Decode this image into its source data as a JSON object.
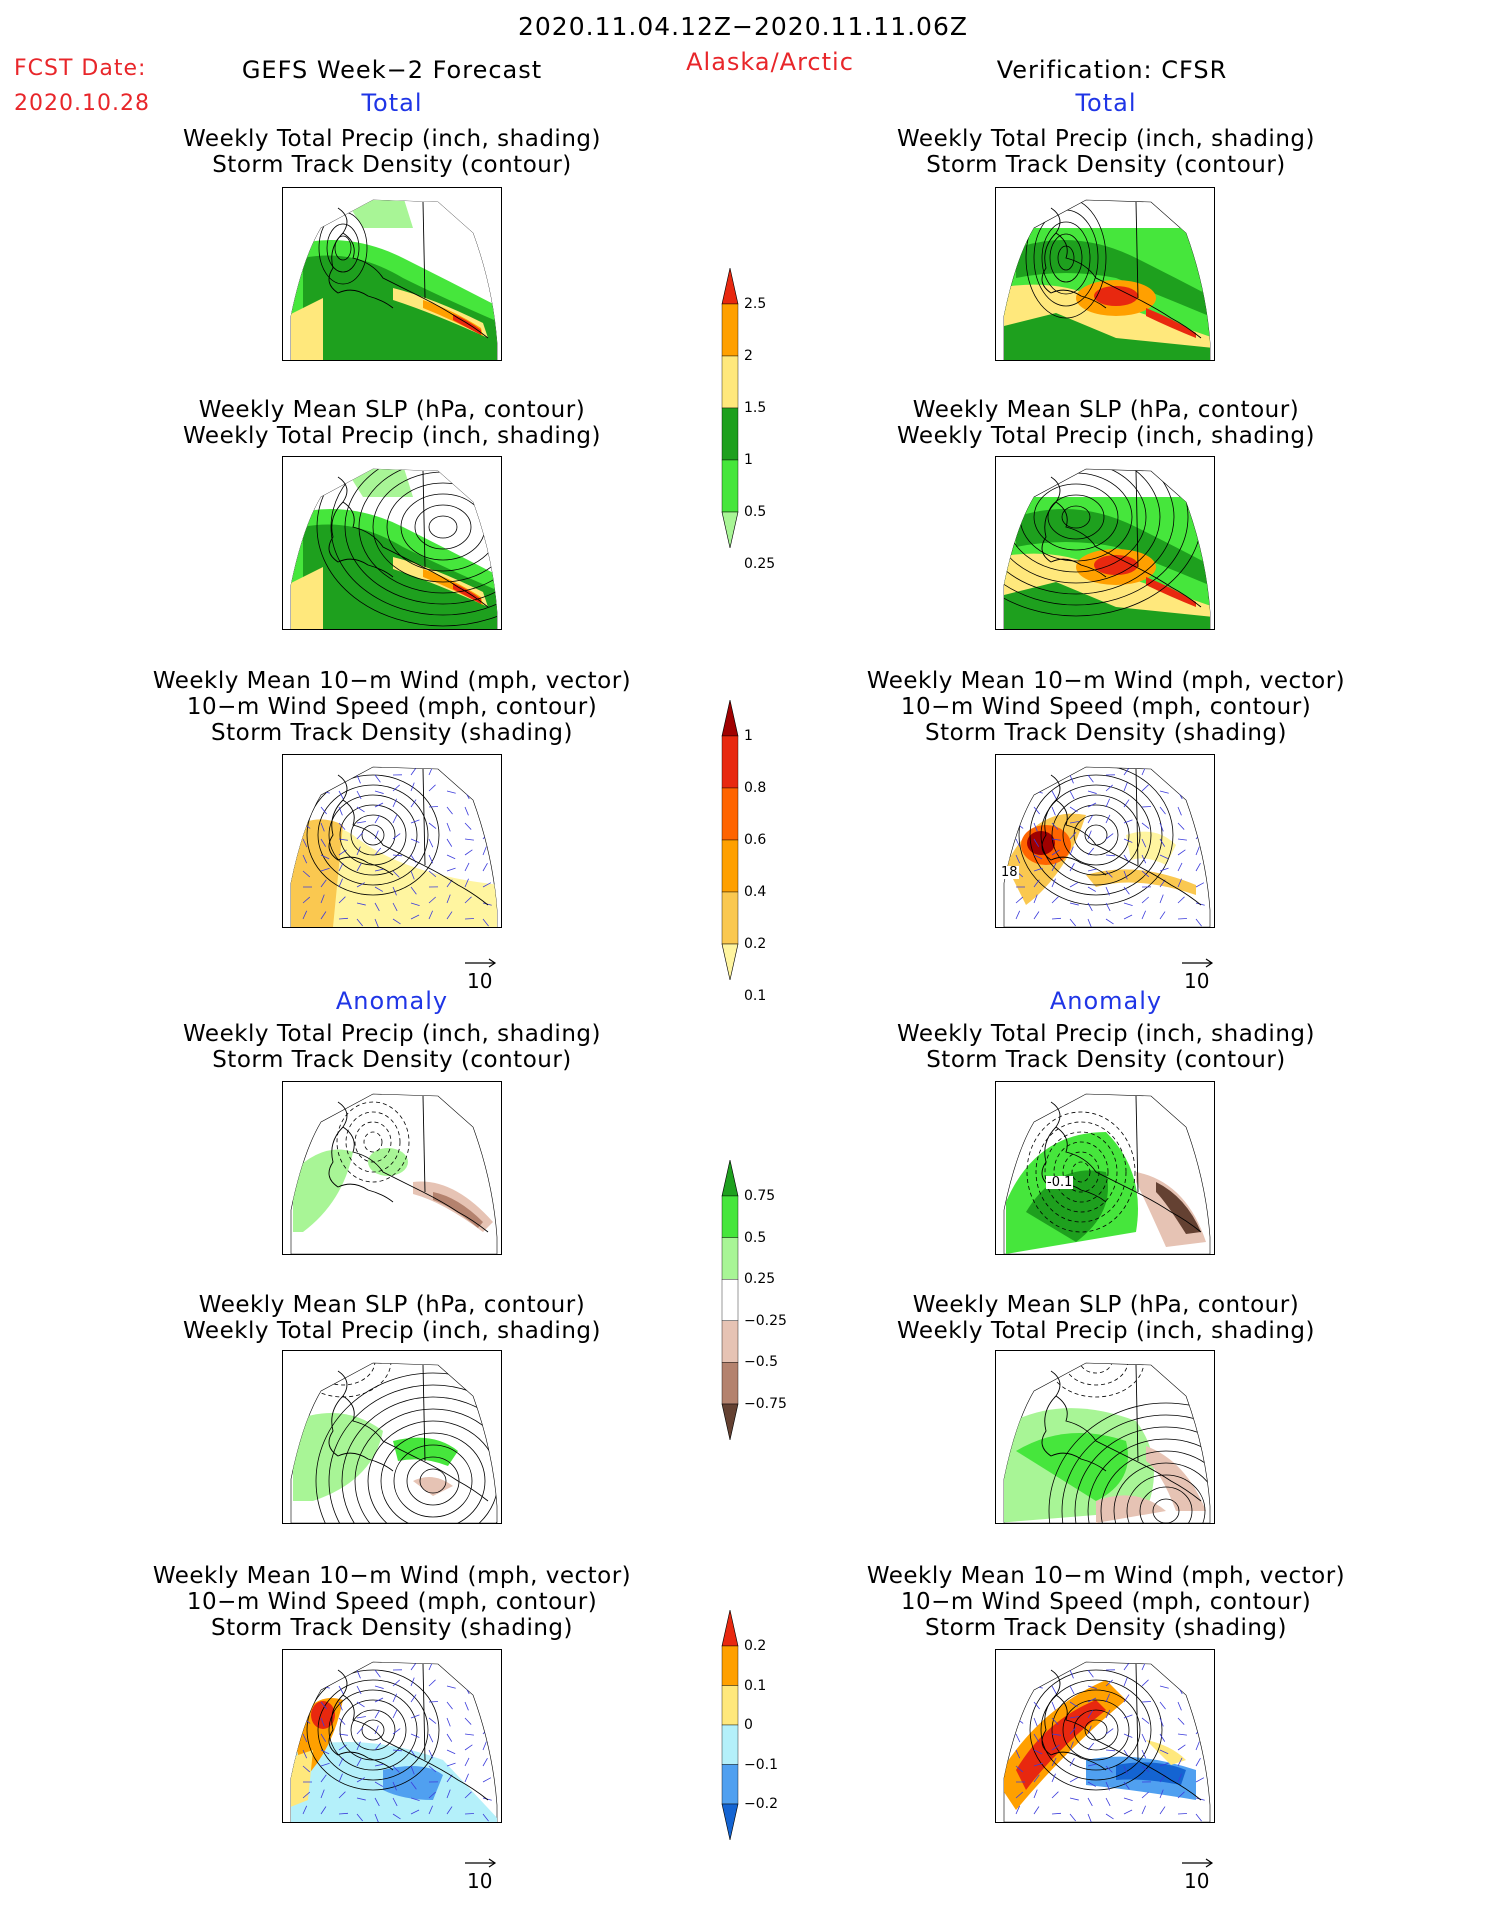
{
  "header": {
    "date_range": "2020.11.04.12Z−2020.11.11.06Z",
    "fcst_label": "FCST Date:",
    "fcst_date": "2020.10.28",
    "model": "GEFS Week−2 Forecast",
    "region": "Alaska/Arctic",
    "verification": "Verification: CFSR"
  },
  "sections": {
    "total": "Total",
    "anomaly": "Anomaly"
  },
  "titles": {
    "precip_track": [
      "Weekly Total Precip (inch, shading)",
      "Storm Track Density (contour)"
    ],
    "slp_precip": [
      "Weekly Mean SLP (hPa, contour)",
      "Weekly Total Precip (inch, shading)"
    ],
    "wind_track": [
      "Weekly Mean 10−m Wind (mph, vector)",
      "10−m Wind Speed (mph, contour)",
      "Storm Track Density (shading)"
    ]
  },
  "vector_ref": "10",
  "contour_labels": {
    "total_wind_cfsr": "18",
    "anom_precip_cfsr": "-0.1"
  },
  "colorbars": {
    "precip_total": {
      "labels": [
        "2.5",
        "2",
        "1.5",
        "1",
        "0.5",
        "0.25"
      ],
      "colors": [
        "#e8280f",
        "#ffa000",
        "#ffe87c",
        "#1ea01e",
        "#46e63c",
        "#a8f596"
      ]
    },
    "storm_total": {
      "labels": [
        "1",
        "0.8",
        "0.6",
        "0.4",
        "0.2",
        "0.1"
      ],
      "colors": [
        "#a00000",
        "#e8280f",
        "#ff6400",
        "#ffa000",
        "#fac850",
        "#fff5a0"
      ]
    },
    "precip_anom": {
      "labels": [
        "0.75",
        "0.5",
        "0.25",
        "−0.25",
        "−0.5",
        "−0.75"
      ],
      "colors": [
        "#1ea01e",
        "#46e63c",
        "#a8f596",
        "#ffffff",
        "#e6c3b4",
        "#b4826e",
        "#644132"
      ]
    },
    "storm_anom": {
      "labels": [
        "0.2",
        "0.1",
        "0",
        "−0.1",
        "−0.2"
      ],
      "colors": [
        "#e8280f",
        "#ffa000",
        "#ffe87c",
        "#b4f0fa",
        "#50a0f0",
        "#1464d2"
      ]
    }
  }
}
